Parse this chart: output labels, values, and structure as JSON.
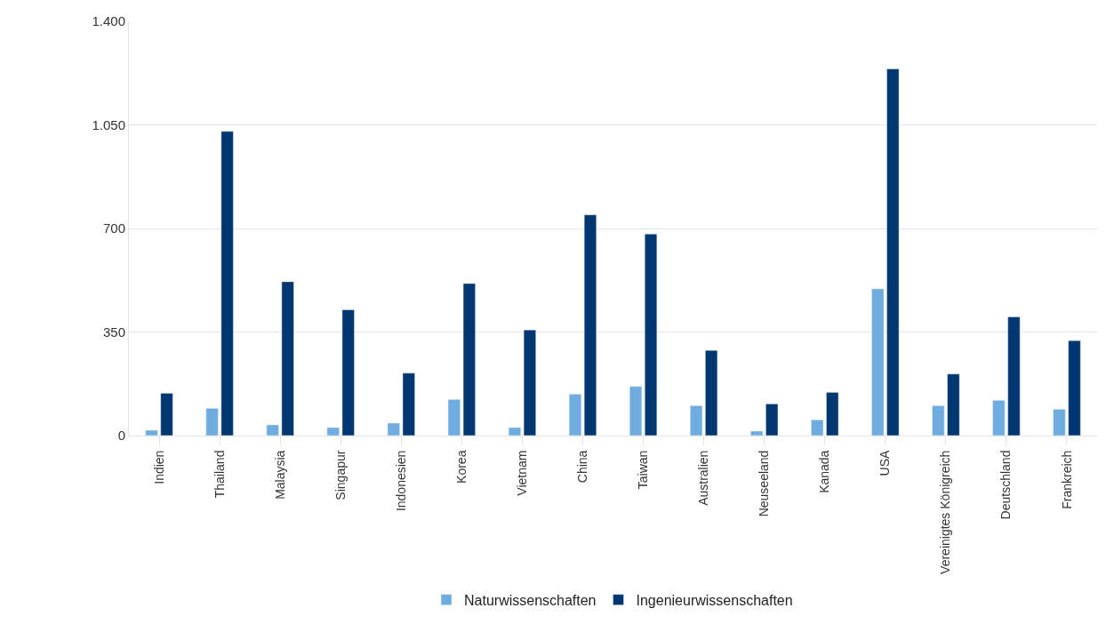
{
  "chart_data": {
    "type": "bar",
    "categories": [
      "Indien",
      "Thailand",
      "Malaysia",
      "Singapur",
      "Indonesien",
      "Korea",
      "Vietnam",
      "China",
      "Taiwan",
      "Australien",
      "Neuseeland",
      "Kanada",
      "USA",
      "Vereinigtes Königreich",
      "Deutschland",
      "Frankreich"
    ],
    "series": [
      {
        "name": "Naturwissenschaften",
        "color": "#6fade0",
        "values": [
          18,
          92,
          36,
          27,
          42,
          122,
          27,
          140,
          166,
          101,
          15,
          53,
          496,
          101,
          119,
          89
        ]
      },
      {
        "name": "Ingenieurwissenschaften",
        "color": "#003771",
        "values": [
          143,
          1028,
          520,
          425,
          211,
          514,
          357,
          746,
          681,
          288,
          107,
          146,
          1239,
          208,
          401,
          321
        ]
      }
    ],
    "ylim": [
      0,
      1400
    ],
    "yticks": [
      0,
      350,
      700,
      {
        "value": 1050,
        "label": "1.050"
      },
      {
        "value": 1400,
        "label": "1.400"
      }
    ],
    "grid": "y",
    "legend": "bottom"
  }
}
